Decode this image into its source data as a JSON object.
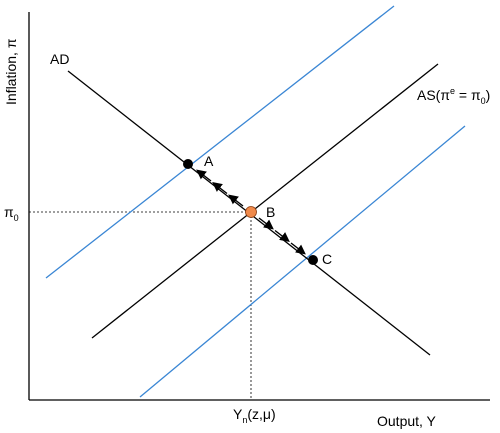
{
  "diagram": {
    "y_axis_label": "Inflation, π",
    "x_axis_label": "Output, Y",
    "ad_label": "AD",
    "as_label": {
      "main": "AS(π",
      "sup": "e",
      "eq": " = π",
      "sub": "0",
      "close": ")"
    },
    "pi0_label": {
      "main": "π",
      "sub": "0"
    },
    "yn_label": {
      "main": "Y",
      "sub": "n",
      "rest": "(z,μ)"
    },
    "points": [
      {
        "id": "A",
        "label": "A",
        "color": "#000000"
      },
      {
        "id": "B",
        "label": "B",
        "color": "#f08a4b"
      },
      {
        "id": "C",
        "label": "C",
        "color": "#000000"
      }
    ],
    "colors": {
      "axes": "#000000",
      "ad_curve": "#000000",
      "as_curve": "#000000",
      "shifted_as_curves": "#3a86d4",
      "dashed_guides": "#000000",
      "equilibrium_point": "#f08a4b"
    },
    "arrows": [
      {
        "from": "B",
        "to": "A",
        "count": 3
      },
      {
        "from": "B",
        "to": "C",
        "count": 3
      }
    ]
  }
}
